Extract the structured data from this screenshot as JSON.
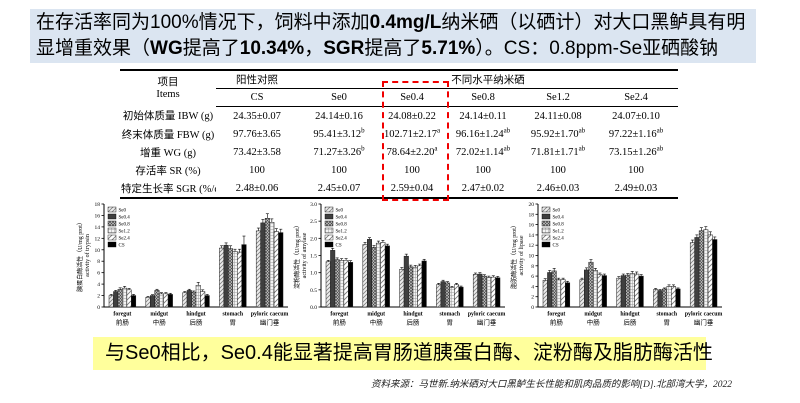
{
  "banner_top": {
    "bg": "#dbe5f1",
    "segments": [
      {
        "t": "在存活率同为100%情况下，饲料中添加",
        "b": false
      },
      {
        "t": "0.4mg/L",
        "b": true
      },
      {
        "t": "纳米硒（以硒计）对大口黑鲈具有明",
        "b": false
      },
      {
        "t": "\n",
        "b": false
      },
      {
        "t": "显增重效果（",
        "b": false
      },
      {
        "t": "WG",
        "b": true
      },
      {
        "t": "提高了",
        "b": false
      },
      {
        "t": "10.34%",
        "b": true
      },
      {
        "t": "，",
        "b": false
      },
      {
        "t": "SGR",
        "b": true
      },
      {
        "t": "提高了",
        "b": false
      },
      {
        "t": "5.71%",
        "b": true
      },
      {
        "t": "）。CS：0.8ppm-Se亚硒酸钠",
        "b": false
      }
    ]
  },
  "table": {
    "item_header_zh": "项目",
    "item_header_en": "Items",
    "group_positive": "阳性对照",
    "group_nano": "不同水平纳米硒",
    "columns": [
      "CS",
      "Se0",
      "Se0.4",
      "Se0.8",
      "Se1.2",
      "Se2.4"
    ],
    "highlight_column": "Se0.4",
    "highlight_color": "#f00000",
    "rows": [
      {
        "label": "初始体质量 IBW (g)",
        "values": [
          "24.35±0.07",
          "24.14±0.16",
          "24.08±0.22",
          "24.14±0.11",
          "24.11±0.08",
          "24.07±0.10"
        ]
      },
      {
        "label": "终末体质量 FBW (g)",
        "values": [
          "97.76±3.65",
          "95.41±3.12^b",
          "102.71±2.17^a",
          "96.16±1.24^ab",
          "95.92±1.70^ab",
          "97.22±1.16^ab"
        ]
      },
      {
        "label": "增重 WG (g)",
        "values": [
          "73.42±3.58",
          "71.27±3.26^b",
          "78.64±2.20^a",
          "72.02±1.14^ab",
          "71.81±1.71^ab",
          "73.15±1.26^ab"
        ]
      },
      {
        "label": "存活率 SR (%)",
        "values": [
          "100",
          "100",
          "100",
          "100",
          "100",
          "100"
        ]
      },
      {
        "label": "特定生长率 SGR (%/d)",
        "values": [
          "2.48±0.06",
          "2.45±0.07",
          "2.59±0.04",
          "2.47±0.02",
          "2.46±0.03",
          "2.49±0.03"
        ]
      }
    ]
  },
  "chart_data": [
    {
      "type": "bar",
      "name": "trypsin-activity",
      "ylabel_zh": "胰蛋白酶活性（U/mg prot）",
      "ylabel_en": "activity of trypsin",
      "ylim": [
        0,
        18
      ],
      "ytick_step": 2,
      "ydecimals": 0,
      "grid": false,
      "legend_position": "top-left",
      "categories_en": [
        "foregut",
        "midgut",
        "hindgut",
        "stomach",
        "pyloric caecum"
      ],
      "categories_zh": [
        "前肠",
        "中肠",
        "后肠",
        "胃",
        "幽门垂"
      ],
      "series": [
        {
          "name": "Se0",
          "values": [
            2.0,
            1.7,
            2.5,
            10.3,
            13.3
          ],
          "errors": [
            0.2,
            0.15,
            0.2,
            0.4,
            0.5
          ]
        },
        {
          "name": "Se0.4",
          "values": [
            2.7,
            2.0,
            2.9,
            10.8,
            14.7
          ],
          "errors": [
            0.2,
            0.15,
            0.2,
            0.4,
            0.6
          ]
        },
        {
          "name": "Se0.8",
          "values": [
            3.1,
            2.9,
            2.6,
            10.2,
            15.5
          ],
          "errors": [
            0.25,
            0.2,
            0.2,
            0.5,
            0.8
          ]
        },
        {
          "name": "Se1.2",
          "values": [
            3.3,
            2.3,
            3.8,
            9.7,
            14.8
          ],
          "errors": [
            0.3,
            0.2,
            0.5,
            0.4,
            0.6
          ]
        },
        {
          "name": "Se2.4",
          "values": [
            3.0,
            2.3,
            2.7,
            9.6,
            13.2
          ],
          "errors": [
            0.25,
            0.2,
            0.3,
            0.5,
            0.5
          ]
        },
        {
          "name": "CS",
          "values": [
            2.0,
            2.2,
            2.0,
            10.9,
            13.0
          ],
          "errors": [
            0.2,
            0.2,
            0.2,
            1.5,
            0.6
          ]
        }
      ]
    },
    {
      "type": "bar",
      "name": "amylase-activity",
      "ylabel_zh": "淀粉酶活性（U/mg prot）",
      "ylabel_en": "activity of amylase",
      "ylim": [
        0,
        3.0
      ],
      "ytick_step": 0.5,
      "ydecimals": 1,
      "grid": false,
      "legend_position": "top-left",
      "categories_en": [
        "foregut",
        "midgut",
        "hindgut",
        "stomach",
        "pyloric caecum"
      ],
      "categories_zh": [
        "前肠",
        "中肠",
        "后肠",
        "胃",
        "幽门垂"
      ],
      "series": [
        {
          "name": "Se0",
          "values": [
            1.32,
            1.82,
            1.1,
            0.65,
            0.95
          ],
          "errors": [
            0.04,
            0.06,
            0.05,
            0.04,
            0.04
          ]
        },
        {
          "name": "Se0.4",
          "values": [
            1.65,
            1.97,
            1.48,
            0.74,
            0.96
          ],
          "errors": [
            0.06,
            0.05,
            0.06,
            0.04,
            0.04
          ]
        },
        {
          "name": "Se0.8",
          "values": [
            1.38,
            1.74,
            1.17,
            0.7,
            0.9
          ],
          "errors": [
            0.05,
            0.05,
            0.05,
            0.04,
            0.04
          ]
        },
        {
          "name": "Se1.2",
          "values": [
            1.36,
            1.86,
            1.16,
            0.57,
            0.86
          ],
          "errors": [
            0.05,
            0.06,
            0.05,
            0.03,
            0.04
          ]
        },
        {
          "name": "Se2.4",
          "values": [
            1.36,
            1.88,
            1.2,
            0.65,
            0.87
          ],
          "errors": [
            0.05,
            0.06,
            0.05,
            0.04,
            0.04
          ]
        },
        {
          "name": "CS",
          "values": [
            1.3,
            1.78,
            1.34,
            0.58,
            0.85
          ],
          "errors": [
            0.05,
            0.05,
            0.05,
            0.03,
            0.04
          ]
        }
      ]
    },
    {
      "type": "bar",
      "name": "lipase-activity",
      "ylabel_zh": "脂肪酶活性（U/mg prot）",
      "ylabel_en": "activity of lipase",
      "ylim": [
        0,
        20
      ],
      "ytick_step": 2,
      "ydecimals": 0,
      "grid": false,
      "legend_position": "top-left",
      "categories_en": [
        "foregut",
        "midgut",
        "hindgut",
        "stomach",
        "pyloric caecum"
      ],
      "categories_zh": [
        "前肠",
        "中肠",
        "后肠",
        "胃",
        "幽门垂"
      ],
      "series": [
        {
          "name": "Se0",
          "values": [
            5.2,
            5.3,
            5.6,
            3.4,
            12.5
          ],
          "errors": [
            0.3,
            0.3,
            0.3,
            0.2,
            0.5
          ]
        },
        {
          "name": "Se0.4",
          "values": [
            6.7,
            7.2,
            6.1,
            3.2,
            13.5
          ],
          "errors": [
            0.4,
            0.4,
            0.3,
            0.2,
            0.5
          ]
        },
        {
          "name": "Se0.8",
          "values": [
            7.0,
            8.7,
            6.2,
            3.5,
            14.8
          ],
          "errors": [
            0.5,
            0.5,
            0.3,
            0.2,
            0.6
          ]
        },
        {
          "name": "Se1.2",
          "values": [
            5.3,
            7.1,
            6.5,
            4.0,
            15.0
          ],
          "errors": [
            0.3,
            0.4,
            0.4,
            0.3,
            0.6
          ]
        },
        {
          "name": "Se2.4",
          "values": [
            5.3,
            6.3,
            6.4,
            4.0,
            14.0
          ],
          "errors": [
            0.3,
            0.3,
            0.4,
            0.3,
            0.6
          ]
        },
        {
          "name": "CS",
          "values": [
            4.7,
            6.1,
            6.0,
            3.5,
            13.1
          ],
          "errors": [
            0.3,
            0.3,
            0.3,
            0.2,
            0.5
          ]
        }
      ]
    }
  ],
  "banner_bottom": {
    "bg": "#ffff9c",
    "text": "与Se0相比，Se0.4能显著提高胃肠道胰蛋白酶、淀粉酶及脂肪酶活性"
  },
  "source": {
    "text": "资料来源：马世新.纳米硒对大口黑鲈生长性能和肌肉品质的影响[D].北部湾大学，2022"
  }
}
